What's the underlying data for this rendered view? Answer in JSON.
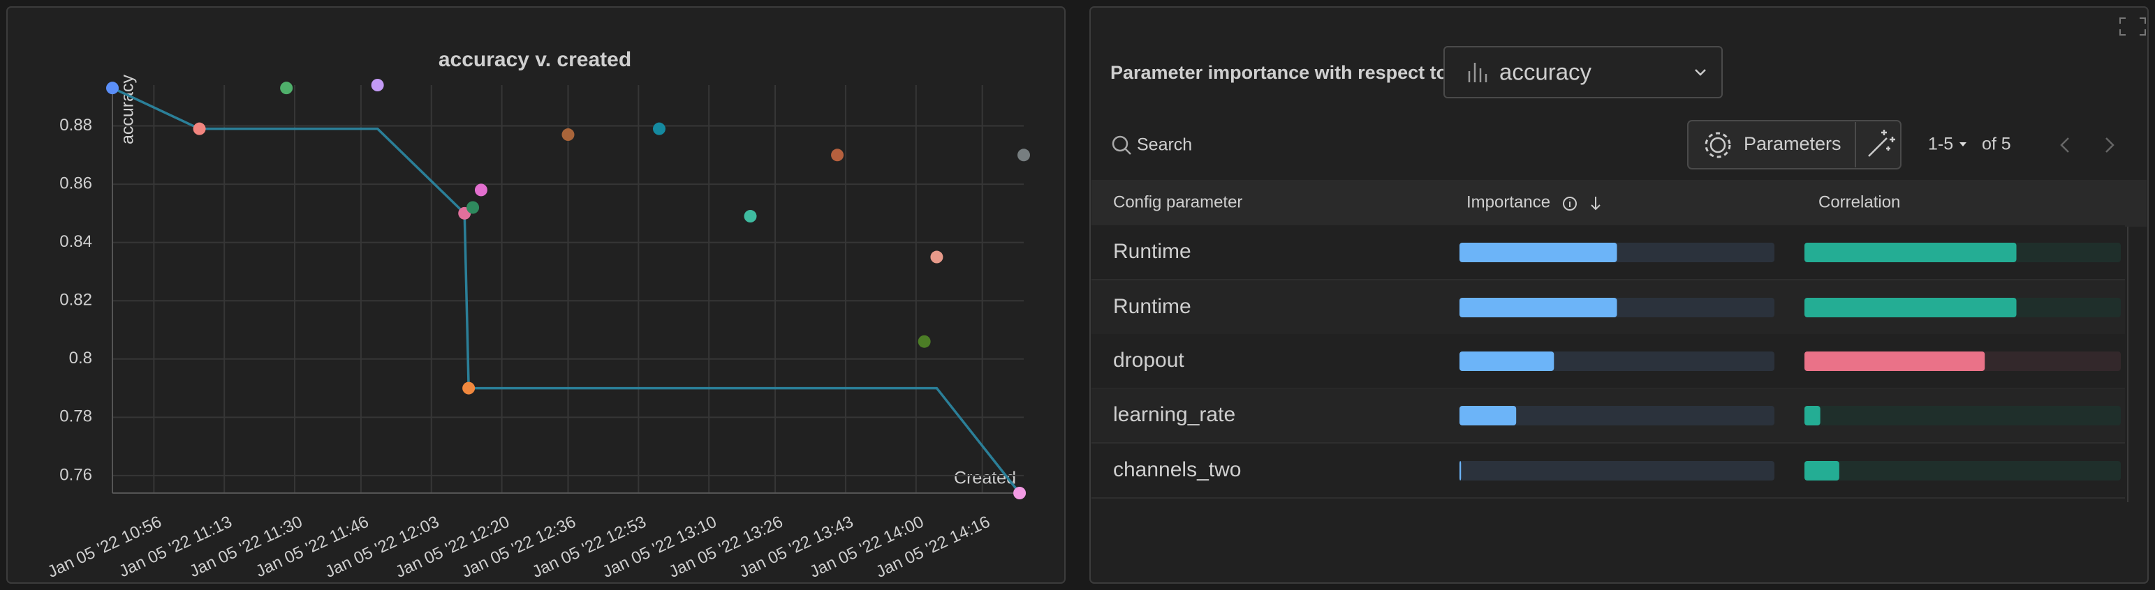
{
  "chart_data": {
    "type": "scatter",
    "title": "accuracy v. created",
    "xlabel": "Created",
    "ylabel": "accuracy",
    "x": [
      "Jan 05 '22 10:46",
      "Jan 05 '22 11:07",
      "Jan 05 '22 11:28",
      "Jan 05 '22 11:50",
      "Jan 05 '22 12:11",
      "Jan 05 '22 12:13",
      "Jan 05 '22 12:15",
      "Jan 05 '22 12:12",
      "Jan 05 '22 12:36",
      "Jan 05 '22 12:58",
      "Jan 05 '22 13:20",
      "Jan 05 '22 13:41",
      "Jan 05 '22 14:05",
      "Jan 05 '22 14:02",
      "Jan 05 '22 14:26",
      "Jan 05 '22 14:25"
    ],
    "values": [
      0.893,
      0.879,
      0.893,
      0.894,
      0.85,
      0.852,
      0.858,
      0.79,
      0.877,
      0.879,
      0.849,
      0.87,
      0.835,
      0.806,
      0.87,
      0.754
    ],
    "colors": [
      "#5b8ff9",
      "#f2857f",
      "#4fb06b",
      "#c39af5",
      "#e0709c",
      "#2f8a5e",
      "#e36fcf",
      "#f0883e",
      "#a9653a",
      "#158aa0",
      "#3fbba0",
      "#b5603e",
      "#e79a8a",
      "#4c7d26",
      "#777e80",
      "#f39be4"
    ],
    "line": {
      "color": "#2b7f98",
      "x": [
        "Jan 05 '22 10:46",
        "Jan 05 '22 11:07",
        "Jan 05 '22 11:50",
        "Jan 05 '22 12:11",
        "Jan 05 '22 12:12",
        "Jan 05 '22 14:05",
        "Jan 05 '22 14:25"
      ],
      "values": [
        0.893,
        0.879,
        0.879,
        0.85,
        0.79,
        0.79,
        0.754
      ]
    },
    "xlim": [
      "Jan 05 '22 10:46",
      "Jan 05 '22 14:26"
    ],
    "ylim": [
      0.754,
      0.894
    ],
    "xticks": [
      "Jan 05 '22 10:56",
      "Jan 05 '22 11:13",
      "Jan 05 '22 11:30",
      "Jan 05 '22 11:46",
      "Jan 05 '22 12:03",
      "Jan 05 '22 12:20",
      "Jan 05 '22 12:36",
      "Jan 05 '22 12:53",
      "Jan 05 '22 13:10",
      "Jan 05 '22 13:26",
      "Jan 05 '22 13:43",
      "Jan 05 '22 14:00",
      "Jan 05 '22 14:16"
    ],
    "yticks": [
      0.76,
      0.78,
      0.8,
      0.82,
      0.84,
      0.86,
      0.88
    ],
    "grid": true
  },
  "importance_panel": {
    "title": "Parameter importance with respect to",
    "metric": "accuracy",
    "search_placeholder": "Search",
    "parameters_button": "Parameters",
    "page_range": "1-5",
    "page_total": "of 5",
    "columns": [
      "Config parameter",
      "Importance",
      "Correlation"
    ],
    "importance_color": "#6cb4f8",
    "positive_color": "#24ad94",
    "negative_color": "#ea7288",
    "rows": [
      {
        "parameter": "Runtime",
        "importance": 0.5,
        "correlation": 0.67
      },
      {
        "parameter": "Runtime",
        "importance": 0.5,
        "correlation": 0.67
      },
      {
        "parameter": "dropout",
        "importance": 0.3,
        "correlation": -0.57
      },
      {
        "parameter": "learning_rate",
        "importance": 0.18,
        "correlation": 0.05
      },
      {
        "parameter": "channels_two",
        "importance": 0.005,
        "correlation": 0.11
      }
    ]
  }
}
